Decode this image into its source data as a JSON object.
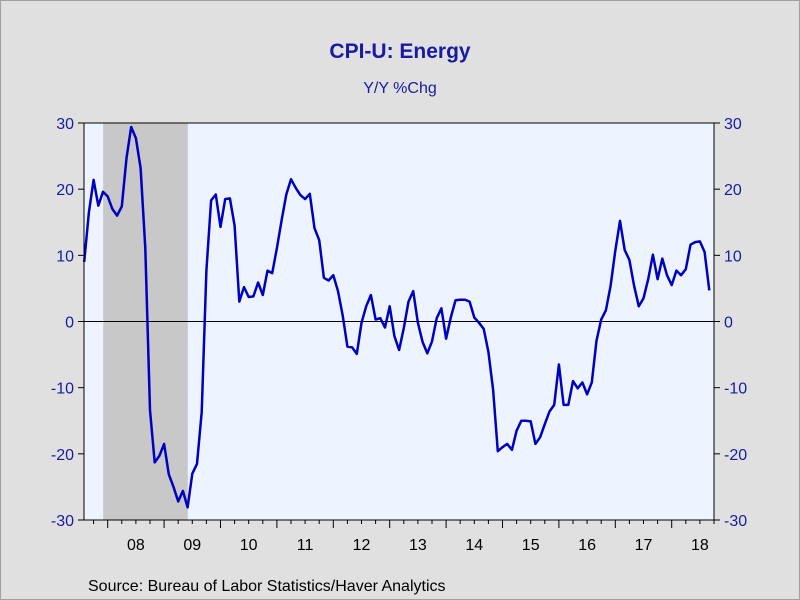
{
  "chart_data": {
    "type": "line",
    "title": "CPI-U: Energy",
    "subtitle": "Y/Y %Chg",
    "source": "Source:  Bureau of Labor Statistics/Haver Analytics",
    "xlabel": "",
    "ylabel": "",
    "ylim": [
      -30,
      30
    ],
    "xlim": [
      2007.58,
      2018.75
    ],
    "y_ticks": [
      30,
      20,
      10,
      0,
      -10,
      -20,
      -30
    ],
    "y_tick_labels": [
      "30",
      "20",
      "10",
      "0",
      "-10",
      "-20",
      "-30"
    ],
    "x_ticks": [
      2008,
      2009,
      2010,
      2011,
      2012,
      2013,
      2014,
      2015,
      2016,
      2017,
      2018
    ],
    "x_tick_labels": [
      "08",
      "09",
      "10",
      "11",
      "12",
      "13",
      "14",
      "15",
      "16",
      "17",
      "18"
    ],
    "grid": false,
    "legend": "none",
    "recession": {
      "start": 2007.92,
      "end": 2009.42
    },
    "colors": {
      "line": "#0000c0",
      "axis_text": "#1a1aa0",
      "plot_background": "#eef4ff",
      "recession_shading": "#c8c8c8",
      "page_background": "#e0e0e0"
    },
    "series": [
      {
        "x": [
          2007.583,
          2007.667,
          2007.75,
          2007.833,
          2007.917,
          2008.0,
          2008.083,
          2008.167,
          2008.25,
          2008.333,
          2008.417,
          2008.5,
          2008.583,
          2008.667,
          2008.75,
          2008.833,
          2008.917,
          2009.0,
          2009.083,
          2009.167,
          2009.25,
          2009.333,
          2009.417,
          2009.5,
          2009.583,
          2009.667,
          2009.75,
          2009.833,
          2009.917,
          2010.0,
          2010.083,
          2010.167,
          2010.25,
          2010.333,
          2010.417,
          2010.5,
          2010.583,
          2010.667,
          2010.75,
          2010.833,
          2010.917,
          2011.0,
          2011.083,
          2011.167,
          2011.25,
          2011.333,
          2011.417,
          2011.5,
          2011.583,
          2011.667,
          2011.75,
          2011.833,
          2011.917,
          2012.0,
          2012.083,
          2012.167,
          2012.25,
          2012.333,
          2012.417,
          2012.5,
          2012.583,
          2012.667,
          2012.75,
          2012.833,
          2012.917,
          2013.0,
          2013.083,
          2013.167,
          2013.25,
          2013.333,
          2013.417,
          2013.5,
          2013.583,
          2013.667,
          2013.75,
          2013.833,
          2013.917,
          2014.0,
          2014.083,
          2014.167,
          2014.25,
          2014.333,
          2014.417,
          2014.5,
          2014.583,
          2014.667,
          2014.75,
          2014.833,
          2014.917,
          2015.0,
          2015.083,
          2015.167,
          2015.25,
          2015.333,
          2015.417,
          2015.5,
          2015.583,
          2015.667,
          2015.75,
          2015.833,
          2015.917,
          2016.0,
          2016.083,
          2016.167,
          2016.25,
          2016.333,
          2016.417,
          2016.5,
          2016.583,
          2016.667,
          2016.75,
          2016.833,
          2016.917,
          2017.0,
          2017.083,
          2017.167,
          2017.25,
          2017.333,
          2017.417,
          2017.5,
          2017.583,
          2017.667,
          2017.75,
          2017.833,
          2017.917,
          2018.0,
          2018.083,
          2018.167,
          2018.25,
          2018.333,
          2018.417,
          2018.5,
          2018.583,
          2018.667
        ],
        "y": [
          9.0,
          16.5,
          21.4,
          17.5,
          19.6,
          18.9,
          17.0,
          16.0,
          17.4,
          24.7,
          29.4,
          27.7,
          23.2,
          11.1,
          -13.4,
          -21.3,
          -20.3,
          -18.5,
          -23.1,
          -25.0,
          -27.2,
          -25.6,
          -28.1,
          -23.0,
          -21.5,
          -13.7,
          7.7,
          18.3,
          19.2,
          14.3,
          18.5,
          18.6,
          14.5,
          3.0,
          5.2,
          3.7,
          3.8,
          5.9,
          4.0,
          7.7,
          7.3,
          11.1,
          15.3,
          19.2,
          21.5,
          20.2,
          19.1,
          18.5,
          19.3,
          14.1,
          12.3,
          6.6,
          6.2,
          7.0,
          4.6,
          0.9,
          -3.8,
          -3.9,
          -4.9,
          -0.2,
          2.3,
          4.0,
          0.3,
          0.5,
          -0.9,
          2.3,
          -2.2,
          -4.3,
          -1.0,
          3.0,
          4.6,
          -0.2,
          -3.1,
          -4.8,
          -3.0,
          0.5,
          2.0,
          -2.6,
          0.6,
          3.2,
          3.3,
          3.3,
          3.0,
          0.6,
          -0.2,
          -1.1,
          -4.6,
          -10.3,
          -19.6,
          -19.0,
          -18.5,
          -19.4,
          -16.5,
          -15.0,
          -15.0,
          -15.1,
          -18.5,
          -17.5,
          -15.5,
          -13.6,
          -12.6,
          -6.5,
          -12.6,
          -12.6,
          -9.0,
          -10.1,
          -9.2,
          -11.0,
          -9.2,
          -2.9,
          0.3,
          1.7,
          5.4,
          10.7,
          15.2,
          10.8,
          9.3,
          5.4,
          2.3,
          3.5,
          6.4,
          10.1,
          6.4,
          9.5,
          7.0,
          5.5,
          7.7,
          7.0,
          7.9,
          11.6,
          12.0,
          12.1,
          10.5,
          4.7
        ]
      }
    ]
  }
}
